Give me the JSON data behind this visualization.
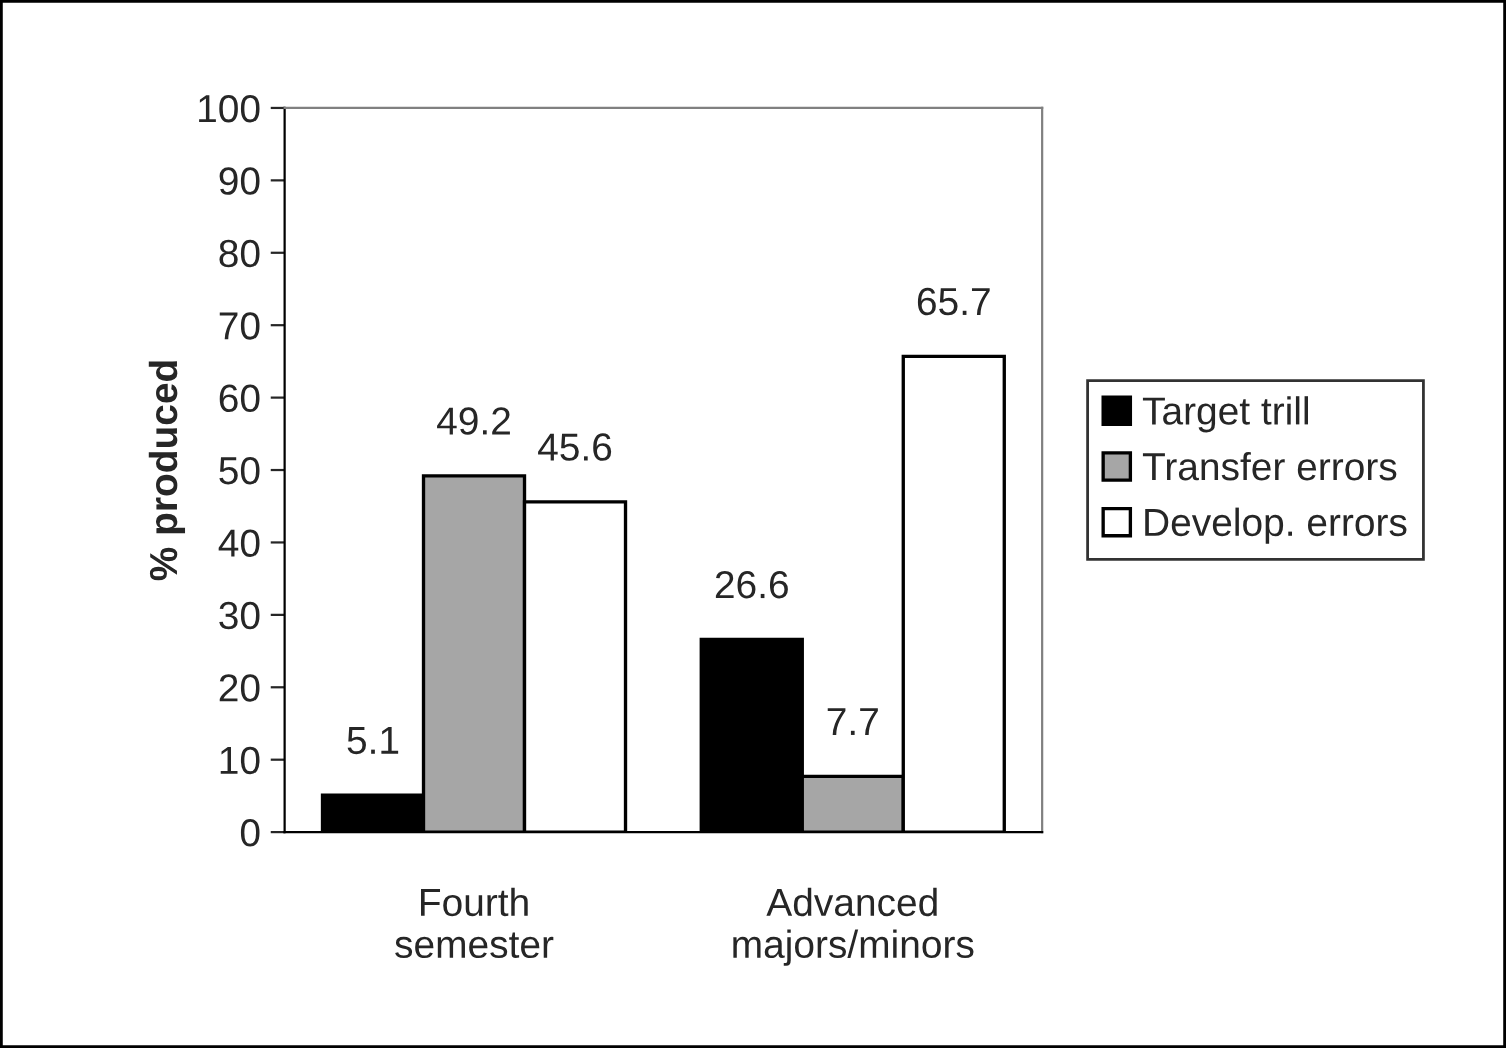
{
  "chart_data": {
    "type": "bar",
    "ylabel": "% produced",
    "categories": [
      "Fourth\nsemester",
      "Advanced\nmajors/minors"
    ],
    "series": [
      {
        "name": "Target trill",
        "color": "#000000",
        "values": [
          5.1,
          26.6
        ]
      },
      {
        "name": "Transfer errors",
        "color": "#a6a6a6",
        "values": [
          49.2,
          7.7
        ]
      },
      {
        "name": "Develop. errors",
        "color": "#ffffff",
        "values": [
          45.6,
          65.7
        ]
      }
    ],
    "ylim": [
      0,
      100
    ],
    "yticks": [
      0,
      10,
      20,
      30,
      40,
      50,
      60,
      70,
      80,
      90,
      100
    ],
    "data_labels": true,
    "legend": "right",
    "grid": false
  }
}
